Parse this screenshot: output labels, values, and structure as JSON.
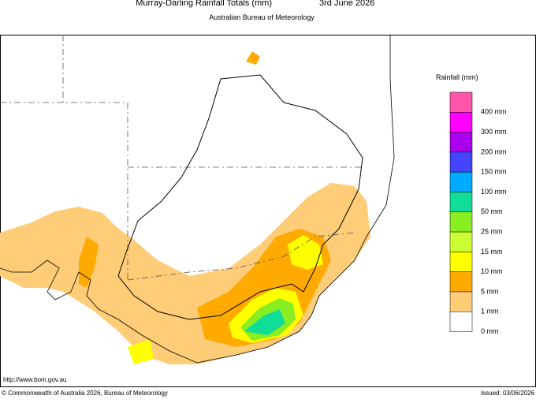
{
  "header": {
    "title": "Murray-Darling Rainfall Totals (mm)",
    "date": "3rd June 2026",
    "subtitle": "Australian Bureau of Meteorology"
  },
  "legend": {
    "title": "Rainfall (mm)",
    "items": [
      {
        "label": "400 mm",
        "color": "#ff55aa"
      },
      {
        "label": "300 mm",
        "color": "#ff00ff"
      },
      {
        "label": "200 mm",
        "color": "#aa00ee"
      },
      {
        "label": "150 mm",
        "color": "#4444ff"
      },
      {
        "label": "100 mm",
        "color": "#00aaff"
      },
      {
        "label": "50 mm",
        "color": "#11dd99"
      },
      {
        "label": "25 mm",
        "color": "#88ee22"
      },
      {
        "label": "15 mm",
        "color": "#ccff33"
      },
      {
        "label": "10 mm",
        "color": "#ffff00"
      },
      {
        "label": "5 mm",
        "color": "#ffaa00"
      },
      {
        "label": "1 mm",
        "color": "#ffcc77"
      },
      {
        "label": "0 mm",
        "color": "#ffffff"
      }
    ]
  },
  "footer": {
    "url": "http://www.bom.gov.au",
    "copyright": "© Commonwealth of Australia 2026, Bureau of Meteorology",
    "issued": "Issued: 03/06/2026"
  }
}
